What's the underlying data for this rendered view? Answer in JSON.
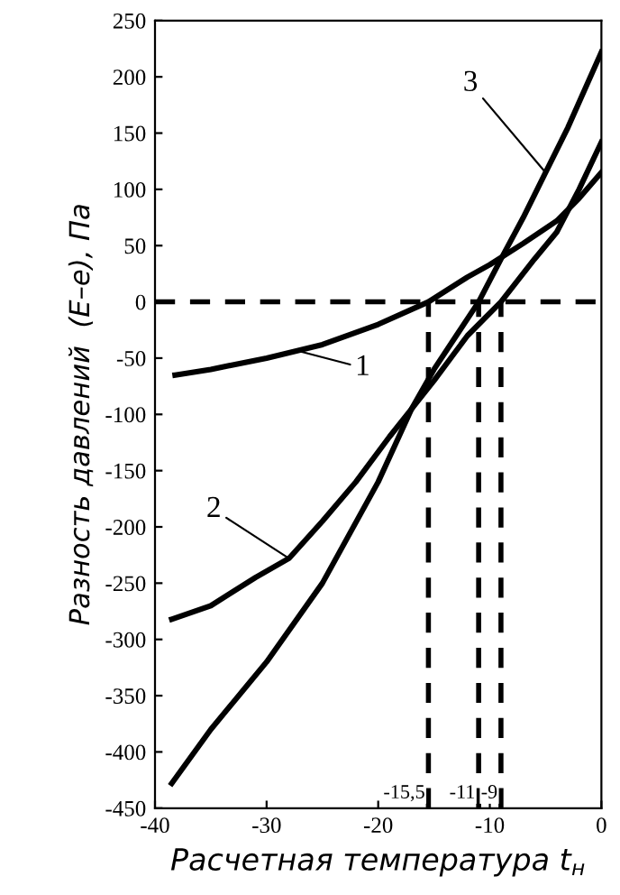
{
  "chart_data": {
    "type": "line",
    "xlabel": "Расчетная температура t$_{н}$",
    "ylabel": "Разность давлений  (E–e), Па",
    "xlim": [
      -40,
      0
    ],
    "xticks": [
      -40,
      -30,
      -20,
      -10,
      0
    ],
    "ylim": [
      -450,
      250
    ],
    "yticks": [
      -450,
      -400,
      -350,
      -300,
      -250,
      -200,
      -150,
      -100,
      -50,
      0,
      50,
      100,
      150,
      200,
      250
    ],
    "grid": false,
    "marker": "none",
    "line_style": "solid",
    "series": [
      {
        "color": "#000000",
        "x": [
          -38.2,
          -35,
          -30,
          -25,
          -20,
          -15.5,
          -12,
          -10,
          -7,
          -4,
          -2,
          0
        ],
        "values": [
          -65,
          -60,
          -50,
          -38,
          -20,
          0,
          22,
          33,
          52,
          72,
          92,
          115
        ]
      },
      {
        "color": "#000000",
        "x": [
          -38.5,
          -35,
          -31,
          -28,
          -25,
          -22,
          -19,
          -17,
          -15,
          -12,
          -9,
          -6,
          -4,
          -2,
          0
        ],
        "values": [
          -282,
          -270,
          -245,
          -228,
          -195,
          -160,
          -120,
          -95,
          -70,
          -30,
          0,
          38,
          62,
          100,
          142
        ]
      },
      {
        "color": "#000000",
        "x": [
          -38.5,
          -35,
          -30,
          -25,
          -20,
          -17,
          -15,
          -13,
          -11,
          -9,
          -7,
          -5,
          -3,
          0
        ],
        "values": [
          -428,
          -380,
          -320,
          -250,
          -160,
          -95,
          -60,
          -30,
          0,
          38,
          75,
          115,
          155,
          222
        ]
      }
    ],
    "ref_lines": [
      {
        "axis": "y",
        "value": 0,
        "line_style": "dashed",
        "color": "#000000"
      },
      {
        "axis": "x",
        "value": -15.5,
        "label": "-15,5",
        "line_style": "dashed",
        "color": "#000000"
      },
      {
        "axis": "x",
        "value": -11,
        "label": "-11",
        "line_style": "dashed",
        "color": "#000000"
      },
      {
        "axis": "x",
        "value": -9,
        "label": "-9",
        "line_style": "dashed",
        "color": "#000000"
      }
    ],
    "annotations": [
      {
        "text": "1",
        "x": -27,
        "y": -44
      },
      {
        "text": "2",
        "x": -28,
        "y": -228
      },
      {
        "text": "3",
        "x": -5,
        "y": 115
      }
    ]
  }
}
